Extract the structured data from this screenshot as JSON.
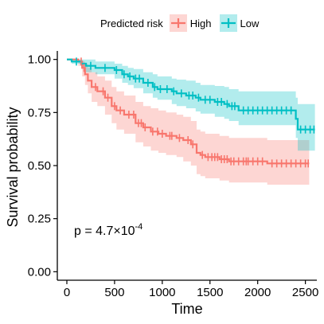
{
  "chart_data": {
    "type": "line",
    "step": true,
    "title": "",
    "xlabel": "Time",
    "ylabel": "Survival probability",
    "xlim": [
      -100,
      2620
    ],
    "ylim": [
      -0.04,
      1.04
    ],
    "x_ticks": [
      0,
      500,
      1000,
      1500,
      2000,
      2500
    ],
    "x_tick_labels": [
      "0",
      "500",
      "1000",
      "1500",
      "2000",
      "2500"
    ],
    "y_ticks": [
      0,
      0.25,
      0.5,
      0.75,
      1.0
    ],
    "y_tick_labels": [
      "0.00",
      "0.25",
      "0.50",
      "0.75",
      "1.00"
    ],
    "grid": false,
    "legend_position": "top",
    "legend_title": "Predicted risk",
    "annotation": {
      "base": "p = 4.7×10",
      "exponent": "-4"
    },
    "series": [
      {
        "name": "High",
        "color": "#F8766D",
        "fill": "#F8766D",
        "points": [
          [
            0,
            1.0
          ],
          [
            120,
            0.99
          ],
          [
            160,
            0.96
          ],
          [
            190,
            0.93
          ],
          [
            220,
            0.9
          ],
          [
            260,
            0.87
          ],
          [
            320,
            0.85
          ],
          [
            400,
            0.82
          ],
          [
            470,
            0.78
          ],
          [
            520,
            0.76
          ],
          [
            600,
            0.74
          ],
          [
            720,
            0.7
          ],
          [
            800,
            0.68
          ],
          [
            880,
            0.66
          ],
          [
            960,
            0.65
          ],
          [
            1040,
            0.64
          ],
          [
            1150,
            0.63
          ],
          [
            1220,
            0.62
          ],
          [
            1300,
            0.6
          ],
          [
            1360,
            0.56
          ],
          [
            1400,
            0.55
          ],
          [
            1450,
            0.54
          ],
          [
            1600,
            0.53
          ],
          [
            1700,
            0.52
          ],
          [
            2100,
            0.51
          ],
          [
            2540,
            0.51
          ]
        ],
        "upper": [
          [
            0,
            1.0
          ],
          [
            120,
            1.0
          ],
          [
            160,
            0.99
          ],
          [
            190,
            0.98
          ],
          [
            220,
            0.96
          ],
          [
            260,
            0.94
          ],
          [
            320,
            0.92
          ],
          [
            400,
            0.9
          ],
          [
            470,
            0.87
          ],
          [
            520,
            0.85
          ],
          [
            600,
            0.83
          ],
          [
            720,
            0.8
          ],
          [
            800,
            0.78
          ],
          [
            880,
            0.77
          ],
          [
            960,
            0.76
          ],
          [
            1040,
            0.75
          ],
          [
            1150,
            0.74
          ],
          [
            1220,
            0.73
          ],
          [
            1300,
            0.71
          ],
          [
            1360,
            0.67
          ],
          [
            1400,
            0.66
          ],
          [
            1450,
            0.65
          ],
          [
            1600,
            0.64
          ],
          [
            1700,
            0.63
          ],
          [
            2100,
            0.62
          ],
          [
            2540,
            0.62
          ]
        ],
        "lower": [
          [
            0,
            1.0
          ],
          [
            120,
            0.97
          ],
          [
            160,
            0.92
          ],
          [
            190,
            0.88
          ],
          [
            220,
            0.84
          ],
          [
            260,
            0.8
          ],
          [
            320,
            0.78
          ],
          [
            400,
            0.74
          ],
          [
            470,
            0.7
          ],
          [
            520,
            0.67
          ],
          [
            600,
            0.65
          ],
          [
            720,
            0.61
          ],
          [
            800,
            0.59
          ],
          [
            880,
            0.57
          ],
          [
            960,
            0.56
          ],
          [
            1040,
            0.55
          ],
          [
            1150,
            0.54
          ],
          [
            1220,
            0.52
          ],
          [
            1300,
            0.5
          ],
          [
            1360,
            0.46
          ],
          [
            1400,
            0.45
          ],
          [
            1450,
            0.44
          ],
          [
            1600,
            0.43
          ],
          [
            1700,
            0.42
          ],
          [
            2100,
            0.41
          ],
          [
            2540,
            0.41
          ]
        ],
        "censor_x": [
          150,
          180,
          300,
          380,
          430,
          500,
          560,
          650,
          700,
          750,
          780,
          820,
          900,
          950,
          1000,
          1080,
          1100,
          1180,
          1270,
          1320,
          1420,
          1480,
          1520,
          1550,
          1580,
          1620,
          1650,
          1680,
          1720,
          1750,
          1800,
          1850,
          1880,
          1900,
          1950,
          2000,
          2050,
          2150,
          2200,
          2250,
          2300,
          2350,
          2400,
          2450,
          2500,
          2530
        ]
      },
      {
        "name": "Low",
        "color": "#00BFC4",
        "fill": "#00BFC4",
        "points": [
          [
            0,
            1.0
          ],
          [
            50,
            0.99
          ],
          [
            150,
            0.98
          ],
          [
            200,
            0.97
          ],
          [
            300,
            0.96
          ],
          [
            500,
            0.95
          ],
          [
            580,
            0.93
          ],
          [
            640,
            0.92
          ],
          [
            700,
            0.91
          ],
          [
            800,
            0.89
          ],
          [
            900,
            0.87
          ],
          [
            950,
            0.86
          ],
          [
            1100,
            0.85
          ],
          [
            1150,
            0.84
          ],
          [
            1250,
            0.83
          ],
          [
            1350,
            0.82
          ],
          [
            1400,
            0.81
          ],
          [
            1550,
            0.8
          ],
          [
            1650,
            0.79
          ],
          [
            1700,
            0.78
          ],
          [
            1800,
            0.76
          ],
          [
            2400,
            0.72
          ],
          [
            2420,
            0.67
          ],
          [
            2600,
            0.67
          ]
        ],
        "upper": [
          [
            0,
            1.0
          ],
          [
            50,
            1.0
          ],
          [
            150,
            1.0
          ],
          [
            200,
            1.0
          ],
          [
            300,
            0.99
          ],
          [
            500,
            0.98
          ],
          [
            580,
            0.97
          ],
          [
            640,
            0.96
          ],
          [
            700,
            0.955
          ],
          [
            800,
            0.94
          ],
          [
            900,
            0.93
          ],
          [
            950,
            0.92
          ],
          [
            1100,
            0.91
          ],
          [
            1150,
            0.905
          ],
          [
            1250,
            0.9
          ],
          [
            1350,
            0.89
          ],
          [
            1400,
            0.88
          ],
          [
            1550,
            0.875
          ],
          [
            1650,
            0.87
          ],
          [
            1700,
            0.86
          ],
          [
            1800,
            0.85
          ],
          [
            2400,
            0.82
          ],
          [
            2420,
            0.79
          ],
          [
            2600,
            0.79
          ]
        ],
        "lower": [
          [
            0,
            1.0
          ],
          [
            50,
            0.98
          ],
          [
            150,
            0.96
          ],
          [
            200,
            0.94
          ],
          [
            300,
            0.93
          ],
          [
            500,
            0.91
          ],
          [
            580,
            0.89
          ],
          [
            640,
            0.88
          ],
          [
            700,
            0.865
          ],
          [
            800,
            0.84
          ],
          [
            900,
            0.82
          ],
          [
            950,
            0.81
          ],
          [
            1100,
            0.79
          ],
          [
            1150,
            0.78
          ],
          [
            1250,
            0.77
          ],
          [
            1350,
            0.755
          ],
          [
            1400,
            0.745
          ],
          [
            1550,
            0.73
          ],
          [
            1650,
            0.72
          ],
          [
            1700,
            0.71
          ],
          [
            1800,
            0.69
          ],
          [
            2400,
            0.63
          ],
          [
            2420,
            0.57
          ],
          [
            2600,
            0.57
          ]
        ],
        "censor_x": [
          100,
          250,
          400,
          520,
          600,
          660,
          720,
          760,
          850,
          920,
          980,
          1050,
          1120,
          1200,
          1280,
          1320,
          1380,
          1450,
          1500,
          1580,
          1620,
          1680,
          1730,
          1760,
          1850,
          1900,
          1950,
          2000,
          2050,
          2100,
          2150,
          2200,
          2250,
          2300,
          2350,
          2450,
          2500,
          2550,
          2590
        ]
      }
    ]
  }
}
